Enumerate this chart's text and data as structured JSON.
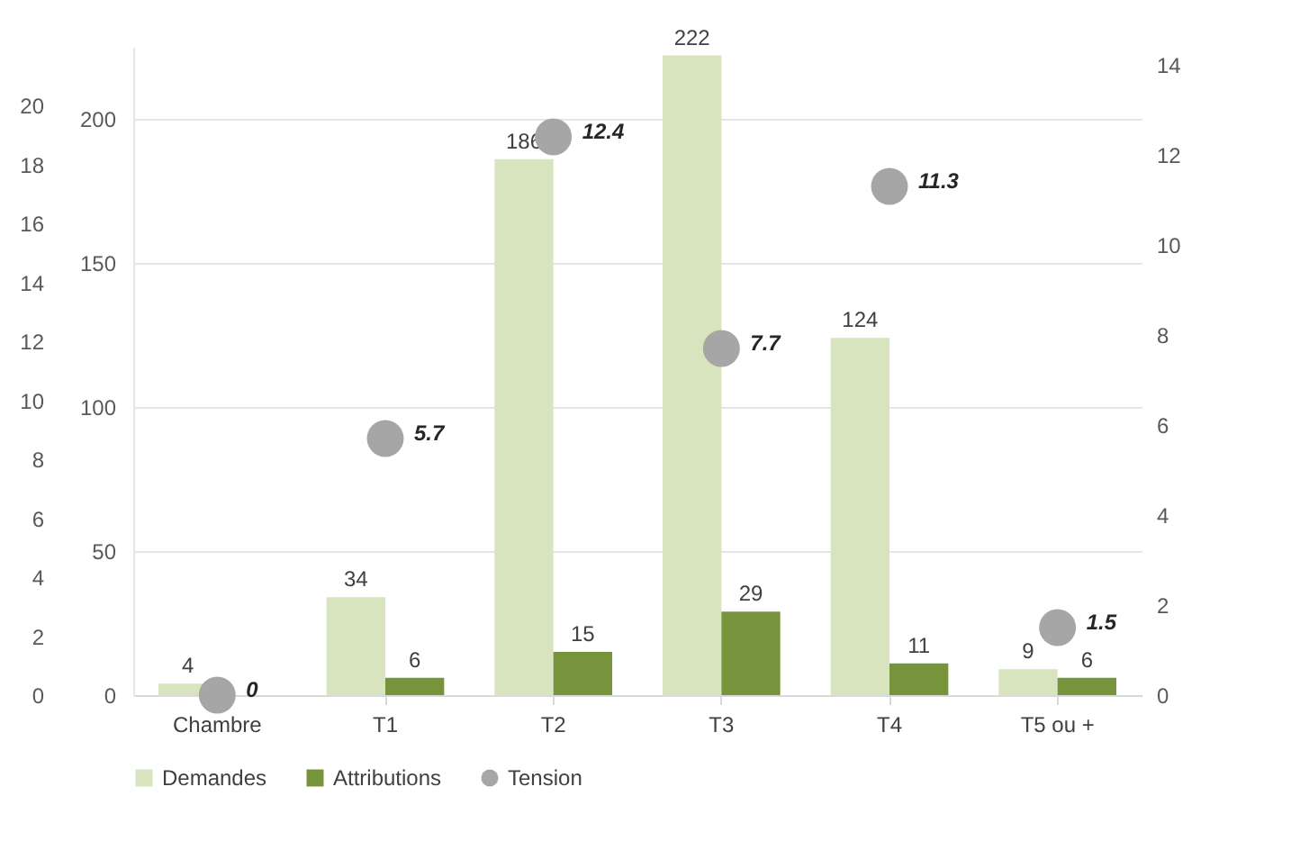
{
  "chart_data": {
    "type": "bar",
    "categories": [
      "Chambre",
      "T1",
      "T2",
      "T3",
      "T4",
      "T5 ou +"
    ],
    "series": [
      {
        "name": "Demandes",
        "color": "#d7e4bd",
        "values": [
          4,
          34,
          186,
          222,
          124,
          9
        ]
      },
      {
        "name": "Attributions",
        "color": "#77933c",
        "values": [
          null,
          6,
          15,
          29,
          11,
          6
        ]
      },
      {
        "name": "Tension",
        "color": "#a6a6a6",
        "type": "scatter",
        "axis": "y2",
        "marker": "circle",
        "values": [
          0,
          5.7,
          12.4,
          7.7,
          11.3,
          1.5
        ]
      }
    ],
    "ylim": [
      0,
      225
    ],
    "yticks": [
      0,
      50,
      100,
      150,
      200
    ],
    "y2lim": [
      0,
      14.4
    ],
    "y2ticks": [
      0,
      2,
      4,
      6,
      8,
      10,
      12,
      14
    ],
    "y3lim": [
      0,
      22
    ],
    "y3ticks": [
      0,
      2,
      4,
      6,
      8,
      10,
      12,
      14,
      16,
      18,
      20
    ],
    "grid": "y",
    "legend": "bottom",
    "data_labels": true
  }
}
